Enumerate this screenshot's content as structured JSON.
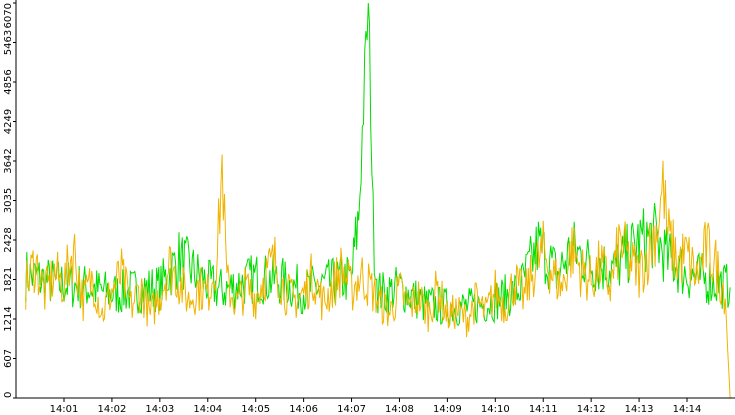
{
  "chart_data": {
    "type": "line",
    "title": "",
    "xlabel": "",
    "ylabel": "",
    "ylim": [
      0,
      6070
    ],
    "y_ticks": [
      "0",
      "607",
      "1214",
      "1821",
      "2428",
      "3035",
      "3642",
      "4249",
      "4856",
      "5463",
      "6070"
    ],
    "x_ticks": [
      "14:01",
      "14:02",
      "14:03",
      "14:04",
      "14:05",
      "14:06",
      "14:07",
      "14:08",
      "14:09",
      "14:10",
      "14:11",
      "14:12",
      "14:13",
      "14:14"
    ],
    "x_tick_minutes": [
      1,
      2,
      3,
      4,
      5,
      6,
      7,
      8,
      9,
      10,
      11,
      12,
      13,
      14
    ],
    "x_range_minutes": [
      0.2,
      14.9
    ],
    "grid": false,
    "legend": "none",
    "series": [
      {
        "color": "#00dd00",
        "x": [
          0.2,
          0.6,
          1.0,
          1.5,
          2.0,
          2.5,
          3.0,
          3.4,
          4.0,
          4.3,
          5.0,
          5.5,
          6.0,
          6.5,
          7.0,
          7.15,
          7.25,
          7.35,
          7.4,
          7.45,
          7.55,
          7.7,
          8.0,
          8.5,
          9.0,
          9.5,
          10.0,
          10.5,
          10.9,
          11.3,
          11.6,
          12.0,
          12.5,
          13.0,
          13.3,
          13.6,
          14.0,
          14.5,
          14.9
        ],
        "values": [
          1900,
          1800,
          1750,
          1700,
          1600,
          1650,
          1700,
          2150,
          1750,
          1650,
          1850,
          1800,
          1650,
          1750,
          1850,
          2800,
          4500,
          6070,
          4600,
          2700,
          1650,
          1600,
          1700,
          1450,
          1400,
          1400,
          1500,
          1650,
          2350,
          1900,
          2300,
          2050,
          2000,
          2400,
          2500,
          2150,
          1900,
          1800,
          1700
        ]
      },
      {
        "color": "#f0b400",
        "x": [
          0.2,
          0.4,
          0.6,
          0.8,
          1.0,
          1.2,
          1.4,
          1.6,
          1.8,
          2.0,
          2.2,
          2.4,
          2.6,
          2.8,
          3.0,
          3.2,
          3.4,
          3.6,
          3.8,
          4.0,
          4.2,
          4.3,
          4.4,
          4.6,
          4.8,
          5.0,
          5.2,
          5.4,
          5.6,
          5.8,
          6.0,
          6.2,
          6.4,
          6.6,
          6.8,
          7.0,
          7.2,
          7.4,
          7.6,
          7.8,
          8.0,
          8.2,
          8.4,
          8.6,
          8.8,
          9.0,
          9.2,
          9.4,
          9.6,
          9.8,
          10.0,
          10.2,
          10.4,
          10.6,
          10.8,
          11.0,
          11.2,
          11.4,
          11.6,
          11.8,
          12.0,
          12.2,
          12.4,
          12.6,
          12.8,
          13.0,
          13.2,
          13.4,
          13.5,
          13.6,
          13.8,
          14.0,
          14.2,
          14.4,
          14.6,
          14.8,
          14.9
        ],
        "values": [
          1700,
          2100,
          1600,
          1900,
          1750,
          2300,
          1500,
          1850,
          1300,
          1650,
          1900,
          1400,
          1700,
          1250,
          1600,
          2050,
          1800,
          1500,
          1700,
          1600,
          2200,
          3600,
          1750,
          1450,
          1700,
          1550,
          1900,
          2100,
          1650,
          1500,
          1600,
          1900,
          1450,
          1700,
          2000,
          1650,
          1900,
          1700,
          1450,
          1300,
          1650,
          1400,
          1550,
          1300,
          1700,
          1250,
          1350,
          1200,
          1500,
          1300,
          1650,
          1400,
          1800,
          1550,
          1950,
          2250,
          1900,
          1700,
          2300,
          1950,
          1800,
          2050,
          1700,
          2400,
          2100,
          1900,
          2250,
          2700,
          3300,
          2500,
          2100,
          2200,
          1850,
          2300,
          2050,
          1600,
          0
        ]
      }
    ]
  }
}
